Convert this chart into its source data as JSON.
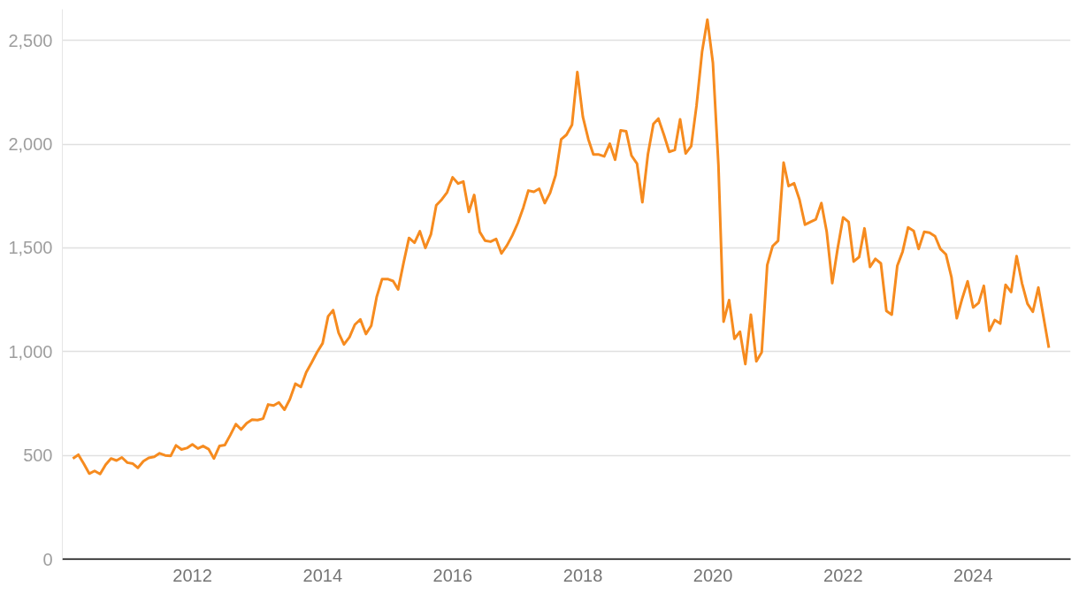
{
  "chart_data": {
    "type": "line",
    "xlim": [
      "2010-01",
      "2025-07"
    ],
    "ylim": [
      0,
      2650
    ],
    "xticks": [
      "2012",
      "2014",
      "2016",
      "2018",
      "2020",
      "2022",
      "2024"
    ],
    "yticks": [
      0,
      500,
      {
        "value": 1000,
        "label": "1,000"
      },
      {
        "value": 1500,
        "label": "1,500"
      },
      {
        "value": 2000,
        "label": "2,000"
      },
      {
        "value": 2500,
        "label": "2,500"
      }
    ],
    "grid": "y",
    "marker": "none",
    "line_style": "solid",
    "x": [
      "2010-03",
      "2010-04",
      "2010-05",
      "2010-06",
      "2010-07",
      "2010-08",
      "2010-09",
      "2010-10",
      "2010-11",
      "2010-12",
      "2011-01",
      "2011-02",
      "2011-03",
      "2011-04",
      "2011-05",
      "2011-06",
      "2011-07",
      "2011-08",
      "2011-09",
      "2011-10",
      "2011-11",
      "2011-12",
      "2012-01",
      "2012-02",
      "2012-03",
      "2012-04",
      "2012-05",
      "2012-06",
      "2012-07",
      "2012-08",
      "2012-09",
      "2012-10",
      "2012-11",
      "2012-12",
      "2013-01",
      "2013-02",
      "2013-03",
      "2013-04",
      "2013-05",
      "2013-06",
      "2013-07",
      "2013-08",
      "2013-09",
      "2013-10",
      "2013-11",
      "2013-12",
      "2014-01",
      "2014-02",
      "2014-03",
      "2014-04",
      "2014-05",
      "2014-06",
      "2014-07",
      "2014-08",
      "2014-09",
      "2014-10",
      "2014-11",
      "2014-12",
      "2015-01",
      "2015-02",
      "2015-03",
      "2015-04",
      "2015-05",
      "2015-06",
      "2015-07",
      "2015-08",
      "2015-09",
      "2015-10",
      "2015-11",
      "2015-12",
      "2016-01",
      "2016-02",
      "2016-03",
      "2016-04",
      "2016-05",
      "2016-06",
      "2016-07",
      "2016-08",
      "2016-09",
      "2016-10",
      "2016-11",
      "2016-12",
      "2017-01",
      "2017-02",
      "2017-03",
      "2017-04",
      "2017-05",
      "2017-06",
      "2017-07",
      "2017-08",
      "2017-09",
      "2017-10",
      "2017-11",
      "2017-12",
      "2018-01",
      "2018-02",
      "2018-03",
      "2018-04",
      "2018-05",
      "2018-06",
      "2018-07",
      "2018-08",
      "2018-09",
      "2018-10",
      "2018-11",
      "2018-12",
      "2019-01",
      "2019-02",
      "2019-03",
      "2019-04",
      "2019-05",
      "2019-06",
      "2019-07",
      "2019-08",
      "2019-09",
      "2019-10",
      "2019-11",
      "2019-12",
      "2020-01",
      "2020-02",
      "2020-03",
      "2020-04",
      "2020-05",
      "2020-06",
      "2020-07",
      "2020-08",
      "2020-09",
      "2020-10",
      "2020-11",
      "2020-12",
      "2021-01",
      "2021-02",
      "2021-03",
      "2021-04",
      "2021-05",
      "2021-06",
      "2021-07",
      "2021-08",
      "2021-09",
      "2021-10",
      "2021-11",
      "2021-12",
      "2022-01",
      "2022-02",
      "2022-03",
      "2022-04",
      "2022-05",
      "2022-06",
      "2022-07",
      "2022-08",
      "2022-09",
      "2022-10",
      "2022-11",
      "2022-12",
      "2023-01",
      "2023-02",
      "2023-03",
      "2023-04",
      "2023-05",
      "2023-06",
      "2023-07",
      "2023-08",
      "2023-09",
      "2023-10",
      "2023-11",
      "2023-12",
      "2024-01",
      "2024-02",
      "2024-03",
      "2024-04",
      "2024-05",
      "2024-06",
      "2024-07",
      "2024-08",
      "2024-09",
      "2024-10",
      "2024-11",
      "2024-12",
      "2025-01",
      "2025-02",
      "2025-03"
    ],
    "series": [
      {
        "color": "#f68b1f",
        "values": [
          485,
          503,
          460,
          412,
          425,
          410,
          455,
          485,
          475,
          490,
          465,
          460,
          440,
          472,
          488,
          493,
          510,
          500,
          497,
          548,
          528,
          535,
          553,
          533,
          545,
          530,
          485,
          545,
          550,
          598,
          650,
          625,
          655,
          672,
          670,
          677,
          745,
          740,
          755,
          720,
          770,
          845,
          830,
          900,
          948,
          997,
          1040,
          1170,
          1200,
          1090,
          1035,
          1070,
          1130,
          1155,
          1085,
          1125,
          1265,
          1350,
          1350,
          1340,
          1300,
          1430,
          1548,
          1525,
          1580,
          1500,
          1565,
          1705,
          1733,
          1768,
          1840,
          1810,
          1820,
          1673,
          1755,
          1577,
          1535,
          1530,
          1543,
          1473,
          1512,
          1560,
          1620,
          1695,
          1776,
          1770,
          1785,
          1716,
          1765,
          1850,
          2023,
          2045,
          2093,
          2348,
          2132,
          2023,
          1950,
          1950,
          1941,
          2002,
          1925,
          2066,
          2062,
          1945,
          1906,
          1720,
          1950,
          2097,
          2123,
          2045,
          1963,
          1972,
          2120,
          1955,
          1990,
          2185,
          2444,
          2600,
          2392,
          1900,
          1144,
          1248,
          1062,
          1096,
          940,
          1178,
          953,
          997,
          1417,
          1508,
          1534,
          1911,
          1798,
          1811,
          1733,
          1612,
          1625,
          1638,
          1716,
          1577,
          1330,
          1495,
          1647,
          1625,
          1434,
          1456,
          1594,
          1408,
          1447,
          1425,
          1196,
          1178,
          1413,
          1482,
          1599,
          1582,
          1495,
          1577,
          1573,
          1556,
          1495,
          1469,
          1360,
          1161,
          1257,
          1339,
          1213,
          1235,
          1317,
          1100,
          1152,
          1135,
          1322,
          1287,
          1460,
          1330,
          1231,
          1192,
          1309,
          1157,
          1018
        ]
      }
    ]
  }
}
